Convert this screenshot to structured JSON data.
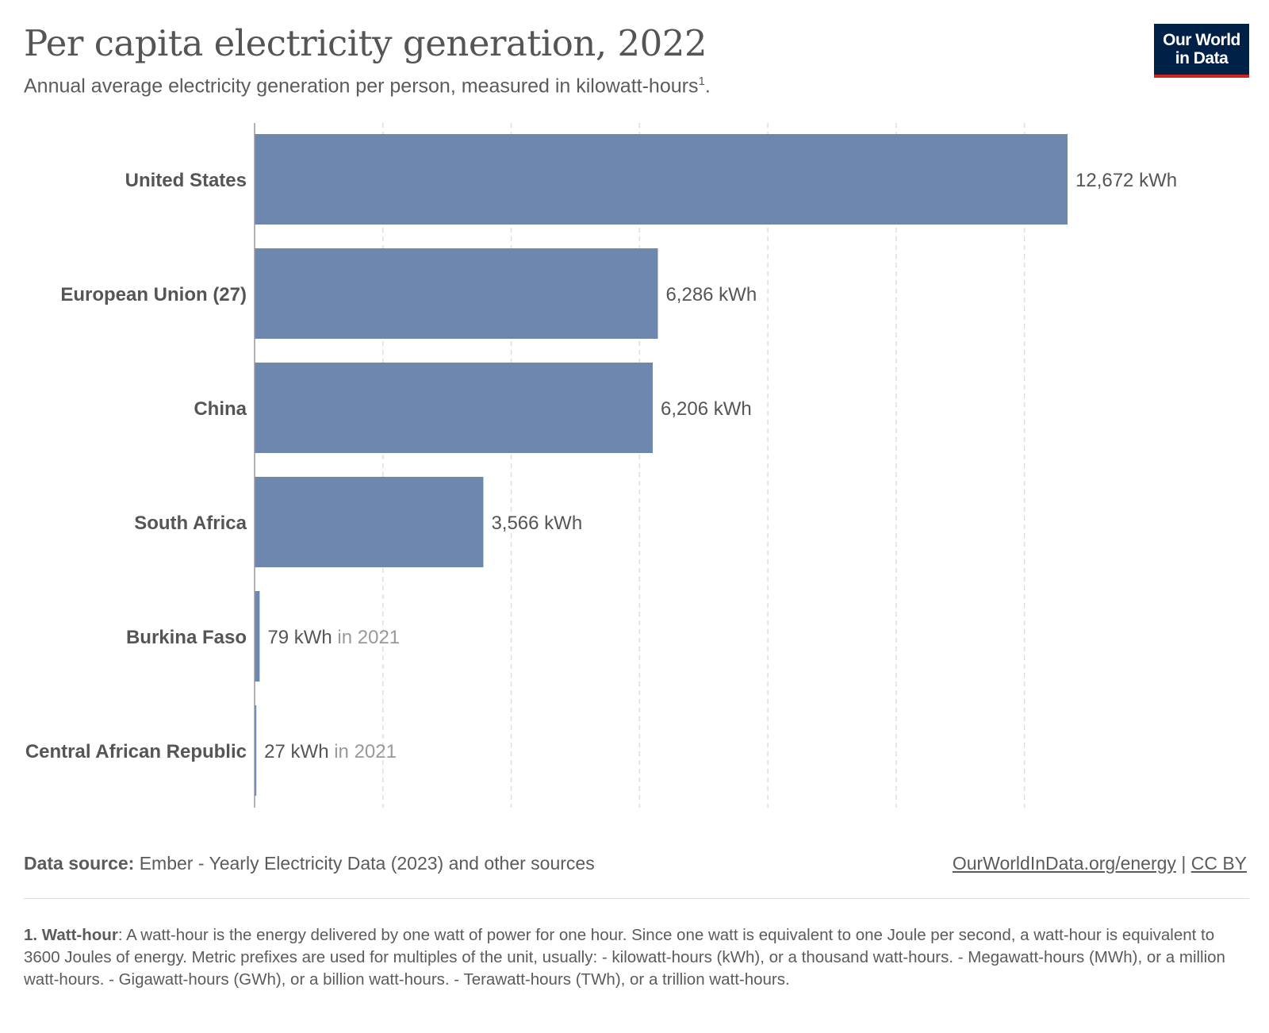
{
  "header": {
    "title": "Per capita electricity generation, 2022",
    "subtitle": "Annual average electricity generation per person, measured in kilowatt-hours",
    "subtitle_sup": "1",
    "subtitle_end": "."
  },
  "logo": {
    "line1": "Our World",
    "line2": "in Data"
  },
  "chart_data": {
    "type": "bar",
    "orientation": "horizontal",
    "title": "Per capita electricity generation, 2022",
    "categories": [
      "United States",
      "European Union (27)",
      "China",
      "South Africa",
      "Burkina Faso",
      "Central African Republic"
    ],
    "values": [
      12672,
      6286,
      6206,
      3566,
      79,
      27
    ],
    "value_labels": [
      "12,672 kWh",
      "6,286 kWh",
      "6,206 kWh",
      "3,566 kWh",
      "79 kWh",
      "27 kWh"
    ],
    "year_notes": [
      "",
      "",
      "",
      "",
      "in 2021",
      "in 2021"
    ],
    "xlim": [
      0,
      12672
    ],
    "gridlines": [
      2000,
      4000,
      6000,
      8000,
      10000,
      12000
    ],
    "grid": true,
    "colors": {
      "bar": "#6d87af",
      "grid": "#dddddd",
      "axis": "#999999",
      "label": "#555555",
      "note": "#999999"
    }
  },
  "footer": {
    "source_label": "Data source:",
    "source_text": " Ember - Yearly Electricity Data (2023) and other sources",
    "link": "OurWorldInData.org/energy",
    "separator": " | ",
    "license": "CC BY"
  },
  "footnote": {
    "number": "1. Watt-hour",
    "text": ": A watt-hour is the energy delivered by one watt of power for one hour. Since one watt is equivalent to one Joule per second, a watt-hour is equivalent to 3600 Joules of energy. Metric prefixes are used for multiples of the unit, usually: - kilowatt-hours (kWh), or a thousand watt-hours. - Megawatt-hours (MWh), or a million watt-hours. - Gigawatt-hours (GWh), or a billion watt-hours. - Terawatt-hours (TWh), or a trillion watt-hours."
  }
}
